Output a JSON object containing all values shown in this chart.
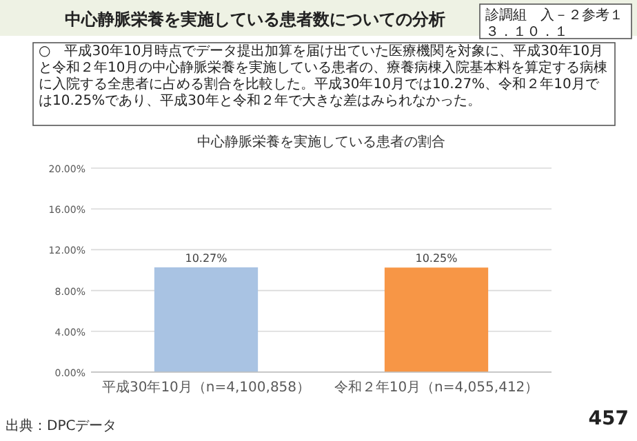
{
  "chart_data": {
    "type": "bar",
    "title": "中心静脈栄養を実施している患者数についての分析",
    "subtitle": "中心静脈栄養を実施している患者の割合",
    "categories": [
      "平成30年10月（n=4,100,858）",
      "令和２年10月（n=4,055,412）"
    ],
    "values": [
      10.27,
      10.25
    ],
    "colors": [
      "#a9c3e3",
      "#f79646"
    ],
    "value_labels": [
      "10.27%",
      "10.25%"
    ],
    "ylim": [
      0,
      20
    ],
    "yticks": [
      {
        "value": 0,
        "label": "0.00%"
      },
      {
        "value": 4,
        "label": "4.00%"
      },
      {
        "value": 8,
        "label": "8.00%"
      },
      {
        "value": 12,
        "label": "12.00%"
      },
      {
        "value": 16,
        "label": "16.00%"
      },
      {
        "value": 20,
        "label": "20.00%"
      }
    ],
    "grid": "y",
    "annotations": [
      "診調組　入－２参考１",
      "３．１０．１",
      "○　平成30年10月時点でデータ提出加算を届け出ていた医療機関を対象に、平成30年10月と令和２年10月の中心静脈栄養を実施している患者の、療養病棟入院基本料を算定する病棟に入院する全患者に占める割合を比較した。平成30年10月では10.27%、令和２年10月では10.25%であり、平成30年と令和２年で大きな差はみられなかった。",
      "出典：DPCデータ",
      "457"
    ]
  }
}
